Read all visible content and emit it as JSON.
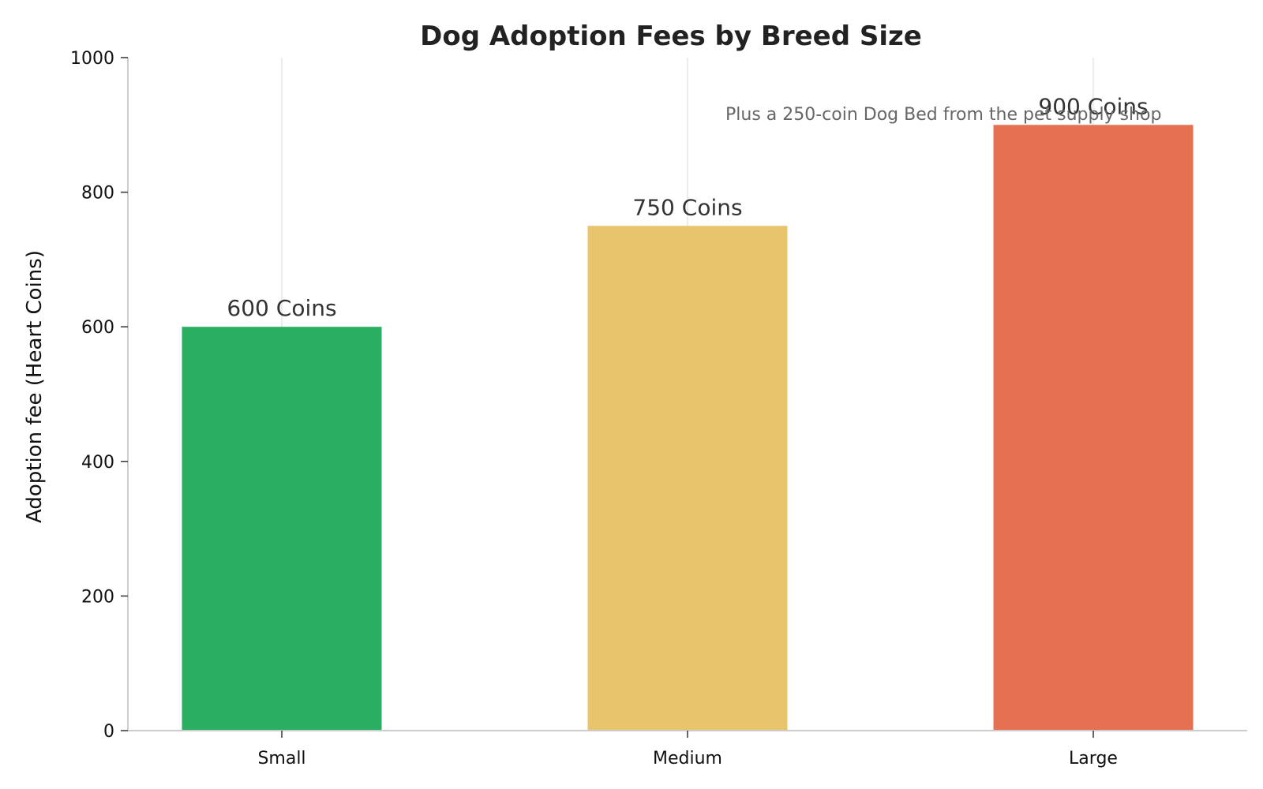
{
  "chart_data": {
    "type": "bar",
    "title": "Dog Adoption Fees by Breed Size",
    "xlabel": "",
    "ylabel": "Adoption fee (Heart Coins)",
    "categories": [
      "Small",
      "Medium",
      "Large"
    ],
    "values": [
      600,
      750,
      900
    ],
    "data_labels": [
      "600 Coins",
      "750 Coins",
      "900 Coins"
    ],
    "colors": [
      "#2aae62",
      "#e8c46c",
      "#e67052"
    ],
    "ylim": [
      0,
      1000
    ],
    "yticks": [
      0,
      200,
      400,
      600,
      800,
      1000
    ],
    "ytick_labels": [
      "0",
      "200",
      "400",
      "600",
      "800",
      "1000"
    ],
    "grid": "vertical",
    "annotation": "Plus a 250-coin Dog Bed from the pet supply shop"
  }
}
